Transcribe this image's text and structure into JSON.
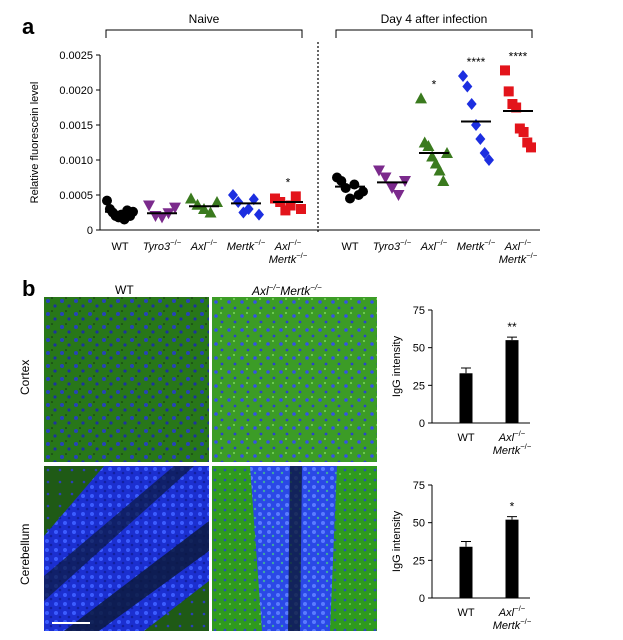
{
  "panel_a_label": "a",
  "panel_b_label": "b",
  "chart_data": [
    {
      "type": "scatter",
      "panel": "a",
      "ylabel": "Relative fluorescein level",
      "ylim": [
        0,
        0.0025
      ],
      "yticks": [
        "0",
        "0.0005",
        "0.0010",
        "0.0015",
        "0.0020",
        "0.0025"
      ],
      "ytick_values": [
        0,
        0.0005,
        0.001,
        0.0015,
        0.002,
        0.0025
      ],
      "group_headers": [
        {
          "label": "Naive",
          "categories": [
            0,
            4
          ]
        },
        {
          "label": "Day 4 after infection",
          "categories": [
            5,
            9
          ]
        }
      ],
      "categories": [
        {
          "label": "WT",
          "italic": false,
          "sup": ""
        },
        {
          "label": "Tyro3",
          "italic": true,
          "sup": "−/−"
        },
        {
          "label": "Axl",
          "italic": true,
          "sup": "−/−"
        },
        {
          "label": "Mertk",
          "italic": true,
          "sup": "−/−"
        },
        {
          "label": "Axl",
          "italic": true,
          "sup": "−/−",
          "label2": "Mertk",
          "sup2": "−/−"
        },
        {
          "label": "WT",
          "italic": false,
          "sup": ""
        },
        {
          "label": "Tyro3",
          "italic": true,
          "sup": "−/−"
        },
        {
          "label": "Axl",
          "italic": true,
          "sup": "−/−"
        },
        {
          "label": "Mertk",
          "italic": true,
          "sup": "−/−"
        },
        {
          "label": "Axl",
          "italic": true,
          "sup": "−/−",
          "label2": "Mertk",
          "sup2": "−/−"
        }
      ],
      "series": [
        {
          "name": "WT",
          "marker": "circle",
          "color": "#000000",
          "values": [
            0.00042,
            0.0003,
            0.00025,
            0.0002,
            0.00018,
            0.00022,
            0.00015,
            0.00028,
            0.0002,
            0.00026
          ],
          "mean": 0.00026,
          "significance": ""
        },
        {
          "name": "Tyro3−/−",
          "marker": "triangle-down",
          "color": "#7b2a8c",
          "values": [
            0.00035,
            0.0002,
            0.00018,
            0.00024,
            0.00032
          ],
          "mean": 0.00024,
          "significance": ""
        },
        {
          "name": "Axl−/−",
          "marker": "triangle-up",
          "color": "#3a7a1e",
          "values": [
            0.00045,
            0.00036,
            0.0003,
            0.00025,
            0.0004
          ],
          "mean": 0.00034,
          "significance": ""
        },
        {
          "name": "Mertk−/−",
          "marker": "diamond",
          "color": "#1c2ee0",
          "values": [
            0.0005,
            0.0004,
            0.00025,
            0.0003,
            0.00044,
            0.00022
          ],
          "mean": 0.00038,
          "significance": ""
        },
        {
          "name": "Axl−/−Mertk−/−",
          "marker": "square",
          "color": "#e3141b",
          "values": [
            0.00045,
            0.0004,
            0.00028,
            0.00035,
            0.00048,
            0.0003
          ],
          "mean": 0.0004,
          "significance": "*"
        },
        {
          "name": "WT",
          "marker": "circle",
          "color": "#000000",
          "values": [
            0.00075,
            0.0007,
            0.0006,
            0.00045,
            0.00065,
            0.0005,
            0.00055
          ],
          "mean": 0.00062,
          "significance": ""
        },
        {
          "name": "Tyro3−/−",
          "marker": "triangle-down",
          "color": "#7b2a8c",
          "values": [
            0.00085,
            0.00075,
            0.0006,
            0.0005,
            0.0007
          ],
          "mean": 0.00068,
          "significance": ""
        },
        {
          "name": "Axl−/−",
          "marker": "triangle-up",
          "color": "#3a7a1e",
          "values": [
            0.00188,
            0.00125,
            0.0012,
            0.00105,
            0.00095,
            0.00085,
            0.0007,
            0.0011
          ],
          "mean": 0.0011,
          "significance": "*"
        },
        {
          "name": "Mertk−/−",
          "marker": "diamond",
          "color": "#1c2ee0",
          "values": [
            0.0022,
            0.00205,
            0.0018,
            0.0015,
            0.0013,
            0.0011,
            0.001
          ],
          "mean": 0.00155,
          "significance": "****"
        },
        {
          "name": "Axl−/−Mertk−/−",
          "marker": "square",
          "color": "#e3141b",
          "values": [
            0.00228,
            0.00198,
            0.0018,
            0.00175,
            0.00145,
            0.0014,
            0.00125,
            0.00118
          ],
          "mean": 0.0017,
          "significance": "****"
        }
      ]
    },
    {
      "type": "bar",
      "panel": "b-cortex",
      "ylabel": "IgG intensity",
      "ylim": [
        0,
        75
      ],
      "yticks": [
        "0",
        "25",
        "50",
        "75"
      ],
      "ytick_values": [
        0,
        25,
        50,
        75
      ],
      "categories": [
        {
          "label": "WT",
          "italic": false,
          "sup": ""
        },
        {
          "label": "Axl",
          "italic": true,
          "sup": "−/−",
          "label2": "Mertk",
          "sup2": "−/−"
        }
      ],
      "values": [
        33,
        55
      ],
      "errors": [
        3.5,
        2
      ],
      "significance": [
        "",
        "**"
      ]
    },
    {
      "type": "bar",
      "panel": "b-cerebellum",
      "ylabel": "IgG intensity",
      "ylim": [
        0,
        75
      ],
      "yticks": [
        "0",
        "25",
        "50",
        "75"
      ],
      "ytick_values": [
        0,
        25,
        50,
        75
      ],
      "categories": [
        {
          "label": "WT",
          "italic": false,
          "sup": ""
        },
        {
          "label": "Axl",
          "italic": true,
          "sup": "−/−",
          "label2": "Mertk",
          "sup2": "−/−"
        }
      ],
      "values": [
        34,
        52
      ],
      "errors": [
        3.5,
        2
      ],
      "significance": [
        "",
        "*"
      ]
    }
  ],
  "micrograph": {
    "column_labels": [
      {
        "text": "WT",
        "sup": "",
        "italic": false
      },
      {
        "text": "Axl",
        "sup": "−/−",
        "text2": "Mertk",
        "sup2": "−/−",
        "italic": true
      }
    ],
    "row_labels": [
      "Cortex",
      "Cerebellum"
    ],
    "colors": {
      "green": "#2e8a1c",
      "green_light": "#5fc24a",
      "blue": "#1a2fd6",
      "blue_light": "#4a6dff",
      "dark": "#0b1a2e"
    }
  }
}
